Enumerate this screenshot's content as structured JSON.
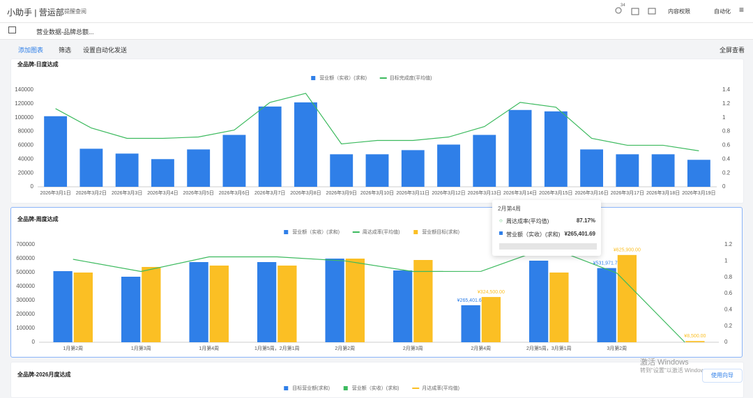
{
  "header": {
    "app": "小助手 | 营运部",
    "reminder": "提醒查阅",
    "badge": "34",
    "permission": "内容权限",
    "automation": "自动化"
  },
  "tab": {
    "label": "营业数据-品牌总额..."
  },
  "toolbar": {
    "add": "添加图表",
    "filter": "筛选",
    "auto_send": "设置自动化发送",
    "fullscreen": "全屏查看"
  },
  "chart_data": [
    {
      "type": "combo",
      "title": "全品牌-日度达成",
      "categories": [
        "2026年3月1日",
        "2026年3月2日",
        "2026年3月3日",
        "2026年3月4日",
        "2026年3月5日",
        "2026年3月6日",
        "2026年3月7日",
        "2026年3月8日",
        "2026年3月9日",
        "2026年3月10日",
        "2026年3月11日",
        "2026年3月12日",
        "2026年3月13日",
        "2026年3月14日",
        "2026年3月15日",
        "2026年3月16日",
        "2026年3月17日",
        "2026年3月18日",
        "2026年3月19日"
      ],
      "series": [
        {
          "name": "营业额（实收）(求和)",
          "color": "#2f7fe8",
          "kind": "bar",
          "values": [
            102000,
            55000,
            48000,
            40000,
            54000,
            75000,
            116000,
            122000,
            47000,
            47000,
            53000,
            61000,
            75000,
            111000,
            109000,
            54000,
            47000,
            47000,
            39000
          ]
        },
        {
          "name": "目标完成度(平均值)",
          "color": "#3cba5e",
          "kind": "line",
          "axis": "y2",
          "values": [
            1.13,
            0.85,
            0.7,
            0.7,
            0.72,
            0.82,
            1.22,
            1.35,
            0.62,
            0.67,
            0.67,
            0.72,
            0.87,
            1.22,
            1.15,
            0.7,
            0.6,
            0.6,
            0.52
          ]
        }
      ],
      "ylim": [
        0,
        140000
      ],
      "yticks": [
        0,
        20000,
        40000,
        60000,
        80000,
        100000,
        120000,
        140000
      ],
      "y2lim": [
        0,
        1.4
      ],
      "y2ticks": [
        0,
        0.2,
        0.4,
        0.6,
        0.8,
        1,
        1.2,
        1.4
      ],
      "grid": false
    },
    {
      "type": "combo",
      "title": "全品牌-周度达成",
      "categories": [
        "1月第2周",
        "1月第3周",
        "1月第4周",
        "1月第5周，2月第1周",
        "2月第2周",
        "2月第3周",
        "2月第4周",
        "2月第5周，3月第1周",
        "3月第2周",
        null
      ],
      "series": [
        {
          "name": "营业额（实收）(求和)",
          "color": "#2f7fe8",
          "kind": "bar",
          "values": [
            510000,
            470000,
            575000,
            575000,
            600000,
            515000,
            265401.69,
            585000,
            531971.75,
            null
          ],
          "value_labels": [
            null,
            null,
            null,
            null,
            null,
            null,
            "¥265,401.69",
            null,
            "¥531,971.75",
            null
          ]
        },
        {
          "name": "周达成率(平均值)",
          "color": "#3cba5e",
          "kind": "line",
          "axis": "y2",
          "values": [
            1.02,
            0.87,
            1.05,
            1.05,
            1.0,
            0.87,
            0.8717,
            1.17,
            0.85,
            0
          ]
        },
        {
          "name": "营业额目标(求和)",
          "color": "#fbbf24",
          "kind": "bar",
          "values": [
            500000,
            540000,
            550000,
            550000,
            600000,
            590000,
            324500,
            500000,
            625900,
            8500
          ],
          "value_labels": [
            null,
            null,
            null,
            null,
            null,
            null,
            "¥324,500.00",
            null,
            "¥625,900.00",
            "¥8,500.00"
          ]
        }
      ],
      "ylim": [
        0,
        700000
      ],
      "yticks": [
        0,
        100000,
        200000,
        300000,
        400000,
        500000,
        600000,
        700000
      ],
      "y2lim": [
        0,
        1.2
      ],
      "y2ticks": [
        0,
        0.2,
        0.4,
        0.6,
        0.8,
        1,
        1.2
      ],
      "grid": false
    },
    {
      "type": "combo",
      "title": "全品牌-2026月度达成",
      "series": [
        {
          "name": "目标营业额(求和)",
          "color": "#2f7fe8",
          "kind": "bar",
          "values": []
        },
        {
          "name": "营业额（实收）(求和)",
          "color": "#3cba5e",
          "kind": "bar",
          "values": []
        },
        {
          "name": "月达成率(平均值)",
          "color": "#fbbf24",
          "kind": "line",
          "values": []
        }
      ]
    }
  ],
  "tooltip": {
    "title": "2月第4周",
    "rows": [
      {
        "name": "周达成率(平均值)",
        "value": "87.17%"
      },
      {
        "name": "营业额（实收）(求和)",
        "value": "¥265,401.69"
      }
    ]
  },
  "watermark": {
    "line1": "激活 Windows",
    "line2": "转到\"设置\"以激活 Windows。"
  },
  "guide": "使用向导"
}
